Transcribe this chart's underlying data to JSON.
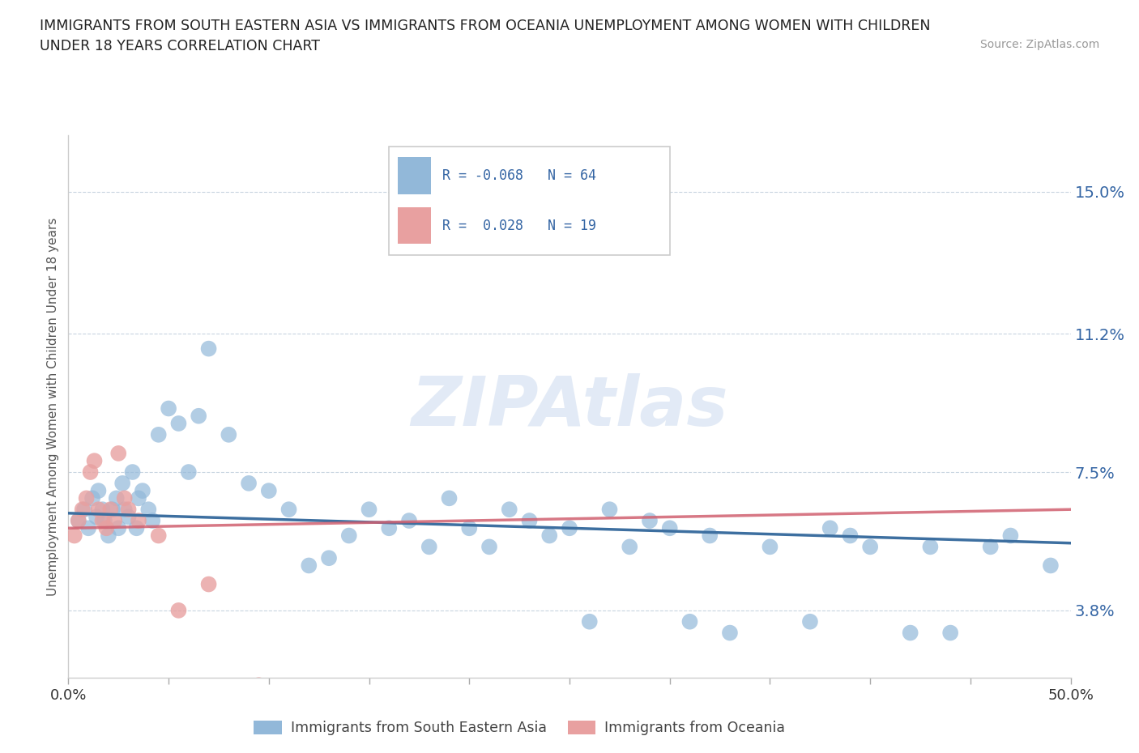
{
  "title_line1": "IMMIGRANTS FROM SOUTH EASTERN ASIA VS IMMIGRANTS FROM OCEANIA UNEMPLOYMENT AMONG WOMEN WITH CHILDREN",
  "title_line2": "UNDER 18 YEARS CORRELATION CHART",
  "source": "Source: ZipAtlas.com",
  "ylabel": "Unemployment Among Women with Children Under 18 years",
  "ytick_values": [
    3.8,
    7.5,
    11.2,
    15.0
  ],
  "ytick_labels": [
    "3.8%",
    "7.5%",
    "11.2%",
    "15.0%"
  ],
  "xtick_values": [
    0,
    5,
    10,
    15,
    20,
    25,
    30,
    35,
    40,
    45,
    50
  ],
  "xtick_edge_labels": [
    "0.0%",
    "50.0%"
  ],
  "xmin": 0.0,
  "xmax": 50.0,
  "ymin": 2.0,
  "ymax": 16.5,
  "color_blue": "#92b8d9",
  "color_pink": "#e8a0a0",
  "color_blue_line": "#3d6fa0",
  "color_pink_line": "#d06070",
  "color_label_blue": "#3465a4",
  "watermark_color": "#d0ddf0",
  "legend_R1": "-0.068",
  "legend_N1": "64",
  "legend_R2": " 0.028",
  "legend_N2": "19",
  "label1": "Immigrants from South Eastern Asia",
  "label2": "Immigrants from Oceania",
  "blue_x": [
    0.5,
    0.8,
    1.0,
    1.2,
    1.4,
    1.5,
    1.7,
    1.8,
    2.0,
    2.2,
    2.4,
    2.5,
    2.7,
    2.8,
    3.0,
    3.2,
    3.4,
    3.5,
    3.7,
    4.0,
    4.2,
    4.5,
    5.0,
    5.5,
    6.0,
    6.5,
    7.0,
    8.0,
    9.0,
    10.0,
    11.0,
    12.0,
    13.0,
    14.0,
    15.0,
    16.0,
    17.0,
    18.0,
    19.0,
    20.0,
    21.0,
    22.0,
    23.0,
    24.0,
    25.0,
    26.0,
    27.0,
    28.0,
    29.0,
    30.0,
    31.0,
    32.0,
    33.0,
    35.0,
    37.0,
    38.0,
    39.0,
    40.0,
    42.0,
    43.0,
    44.0,
    46.0,
    47.0,
    49.0
  ],
  "blue_y": [
    6.2,
    6.5,
    6.0,
    6.8,
    6.3,
    7.0,
    6.5,
    6.2,
    5.8,
    6.5,
    6.8,
    6.0,
    7.2,
    6.5,
    6.3,
    7.5,
    6.0,
    6.8,
    7.0,
    6.5,
    6.2,
    8.5,
    9.2,
    8.8,
    7.5,
    9.0,
    10.8,
    8.5,
    7.2,
    7.0,
    6.5,
    5.0,
    5.2,
    5.8,
    6.5,
    6.0,
    6.2,
    5.5,
    6.8,
    6.0,
    5.5,
    6.5,
    6.2,
    5.8,
    6.0,
    3.5,
    6.5,
    5.5,
    6.2,
    6.0,
    3.5,
    5.8,
    3.2,
    5.5,
    3.5,
    6.0,
    5.8,
    5.5,
    3.2,
    5.5,
    3.2,
    5.5,
    5.8,
    5.0
  ],
  "pink_x": [
    0.3,
    0.5,
    0.7,
    0.9,
    1.1,
    1.3,
    1.5,
    1.7,
    1.9,
    2.1,
    2.3,
    2.5,
    2.8,
    3.0,
    3.5,
    4.5,
    5.5,
    7.0,
    9.5
  ],
  "pink_y": [
    5.8,
    6.2,
    6.5,
    6.8,
    7.5,
    7.8,
    6.5,
    6.2,
    6.0,
    6.5,
    6.2,
    8.0,
    6.8,
    6.5,
    6.2,
    5.8,
    3.8,
    4.5,
    1.8
  ]
}
